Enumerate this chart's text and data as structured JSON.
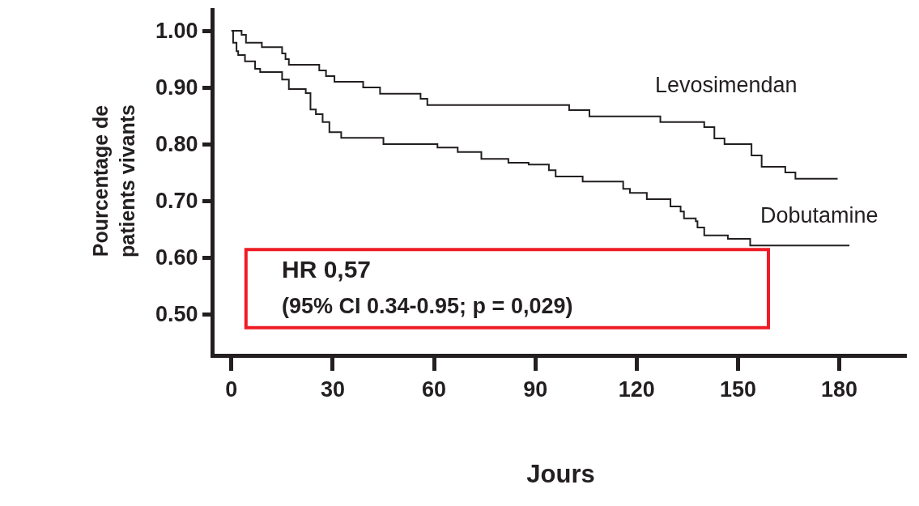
{
  "chart_data": {
    "type": "step",
    "xlabel": "Jours",
    "ylabel": "Pourcentage de\npatients vivants",
    "xlim": [
      -5,
      200
    ],
    "xticks": [
      0,
      30,
      60,
      90,
      120,
      150,
      180
    ],
    "ylim": [
      0.43,
      1.04
    ],
    "yticks": [
      {
        "value": 0.5,
        "label": "0.50"
      },
      {
        "value": 0.6,
        "label": "0.60"
      },
      {
        "value": 0.7,
        "label": "0.70"
      },
      {
        "value": 0.8,
        "label": "0.80"
      },
      {
        "value": 0.9,
        "label": "0.90"
      },
      {
        "value": 1.0,
        "label": "1.00"
      }
    ],
    "grid": false,
    "legend": false,
    "series": [
      {
        "name": "Levosimendan",
        "color": "#231f20",
        "x": [
          0,
          3,
          4.3,
          9,
          15,
          16,
          17,
          26,
          28,
          30.5,
          39,
          44,
          56,
          58,
          100,
          106,
          127,
          140,
          143,
          146,
          154,
          157,
          164,
          167,
          179.5
        ],
        "values": [
          1.0,
          0.993,
          0.979,
          0.971,
          0.96,
          0.95,
          0.94,
          0.93,
          0.92,
          0.91,
          0.9,
          0.889,
          0.88,
          0.869,
          0.86,
          0.849,
          0.839,
          0.83,
          0.81,
          0.8,
          0.78,
          0.76,
          0.75,
          0.739,
          0.739
        ]
      },
      {
        "name": "Dobutamine",
        "color": "#231f20",
        "x": [
          0,
          0.5,
          1.5,
          2,
          4,
          7,
          8.5,
          15,
          17,
          22,
          23.4,
          25,
          27,
          29,
          32.5,
          45,
          61,
          67,
          74,
          82,
          88,
          94,
          96,
          104,
          116,
          118,
          123,
          130,
          133,
          134,
          137.5,
          138,
          140,
          147,
          153.6,
          183
        ],
        "values": [
          1.0,
          0.979,
          0.964,
          0.957,
          0.946,
          0.933,
          0.927,
          0.914,
          0.897,
          0.89,
          0.861,
          0.853,
          0.839,
          0.821,
          0.811,
          0.8,
          0.794,
          0.786,
          0.774,
          0.767,
          0.764,
          0.754,
          0.743,
          0.734,
          0.721,
          0.714,
          0.703,
          0.69,
          0.681,
          0.669,
          0.664,
          0.653,
          0.639,
          0.633,
          0.621,
          0.621
        ]
      }
    ],
    "annotations": [
      "HR 0,57",
      "(95% CI 0.34-0.95; p = 0,029)"
    ]
  }
}
